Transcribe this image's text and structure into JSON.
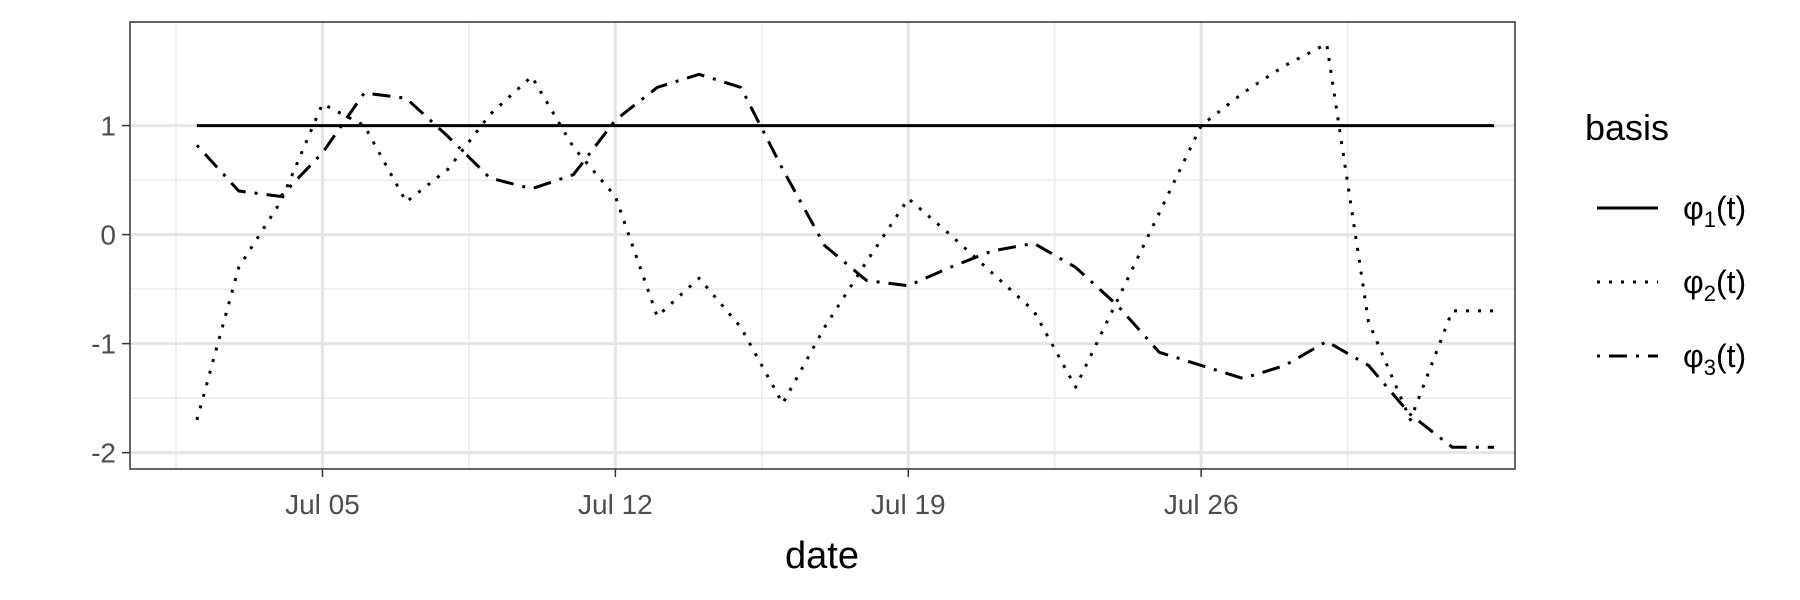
{
  "chart_data": {
    "type": "line",
    "title": "",
    "xlabel": "date",
    "ylabel": "",
    "grid": true,
    "legend_position": "right",
    "legend_title": "basis",
    "x_day_of_july": [
      2,
      3,
      4,
      5,
      6,
      7,
      8,
      9,
      10,
      11,
      12,
      13,
      14,
      15,
      16,
      17,
      18,
      19,
      20,
      21,
      22,
      23,
      24,
      25,
      26,
      27,
      28,
      29,
      30,
      31,
      32,
      33
    ],
    "xlim_day_of_july": [
      0.4,
      33.5
    ],
    "x_ticks": [
      {
        "day": 5,
        "label": "Jul 05"
      },
      {
        "day": 12,
        "label": "Jul 12"
      },
      {
        "day": 19,
        "label": "Jul 19"
      },
      {
        "day": 26,
        "label": "Jul 26"
      }
    ],
    "ylim": [
      -2.15,
      1.95
    ],
    "y_ticks": [
      {
        "value": 1,
        "label": "1"
      },
      {
        "value": 0,
        "label": "0"
      },
      {
        "value": -1,
        "label": "-1"
      },
      {
        "value": -2,
        "label": "-2"
      }
    ],
    "series": [
      {
        "name": "φ1(t)",
        "label_base": "φ",
        "label_sub": "1",
        "label_tail": "(t)",
        "linestyle": "solid",
        "values": [
          1,
          1,
          1,
          1,
          1,
          1,
          1,
          1,
          1,
          1,
          1,
          1,
          1,
          1,
          1,
          1,
          1,
          1,
          1,
          1,
          1,
          1,
          1,
          1,
          1,
          1,
          1,
          1,
          1,
          1,
          1,
          1
        ]
      },
      {
        "name": "φ2(t)",
        "label_base": "φ",
        "label_sub": "2",
        "label_tail": "(t)",
        "linestyle": "dotted",
        "values": [
          -1.7,
          -0.3,
          0.3,
          1.2,
          1.0,
          0.3,
          0.6,
          1.1,
          1.45,
          0.8,
          0.35,
          -0.75,
          -0.4,
          -0.85,
          -1.55,
          -0.85,
          -0.25,
          0.33,
          0.0,
          -0.35,
          -0.7,
          -1.4,
          -0.6,
          0.2,
          1.0,
          1.3,
          1.55,
          1.75,
          -0.8,
          -1.7,
          -0.7,
          -0.7
        ]
      },
      {
        "name": "φ3(t)",
        "label_base": "φ",
        "label_sub": "3",
        "label_tail": "(t)",
        "linestyle": "dotdash",
        "values": [
          0.82,
          0.4,
          0.35,
          0.75,
          1.3,
          1.25,
          0.9,
          0.52,
          0.42,
          0.55,
          1.05,
          1.35,
          1.47,
          1.35,
          0.6,
          -0.1,
          -0.42,
          -0.47,
          -0.3,
          -0.15,
          -0.08,
          -0.3,
          -0.65,
          -1.08,
          -1.2,
          -1.32,
          -1.2,
          -0.98,
          -1.2,
          -1.65,
          -1.95,
          -1.95
        ]
      }
    ]
  }
}
